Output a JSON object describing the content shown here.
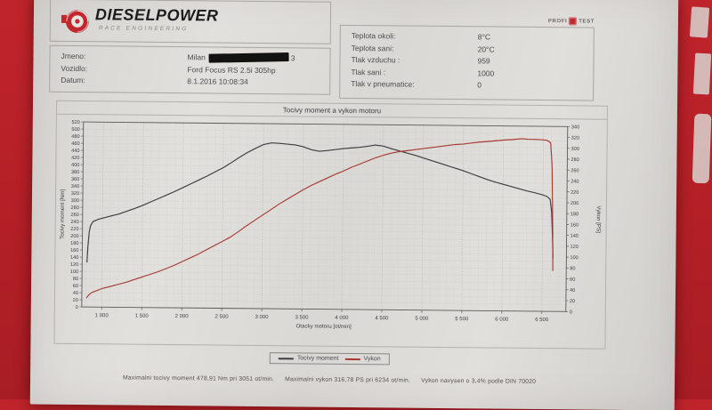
{
  "page": {
    "background_red": "#b7222a",
    "paper_color": "#dedcd8"
  },
  "header": {
    "brand": "DIESELPOWER",
    "subtitle": "RACE ENGINEERING",
    "accent_color": "#c1272d",
    "badge_left": "PROFI",
    "badge_right": "TEST"
  },
  "vehicle": {
    "jmeno_label": "Jmeno:",
    "jmeno_first": "Milan",
    "jmeno_last": "3",
    "vozidlo_label": "Vozidlo:",
    "vozidlo_value": "Ford Focus RS 2.5i 305hp",
    "datum_label": "Datum:",
    "datum_value": "8.1.2016 10:08:34"
  },
  "conditions": {
    "rows": [
      {
        "label": "Teplota okoli:",
        "value": "8°C"
      },
      {
        "label": "Teplota sani:",
        "value": "20°C"
      },
      {
        "label": "Tlak vzduchu :",
        "value": "959"
      },
      {
        "label": "Tlak sani :",
        "value": "1000"
      },
      {
        "label": "Tlak v pneumatice:",
        "value": "0"
      }
    ]
  },
  "chart_data": {
    "type": "line",
    "title": "Tocivy moment a vykon motoru",
    "xlabel": "Otacky motoru [ot/min]",
    "ylabel_left": "Tocivy moment [Nm]",
    "ylabel_right": "Vykon [PS]",
    "x_range": [
      750,
      6800
    ],
    "x_ticks": [
      1000,
      1500,
      2000,
      2500,
      3000,
      3500,
      4000,
      4500,
      5000,
      5500,
      6000,
      6500
    ],
    "y_left_range": [
      0,
      520
    ],
    "y_left_step": 20,
    "y_right_range": [
      0,
      340
    ],
    "y_right_step": 20,
    "grid": true,
    "legend_position": "bottom",
    "series": [
      {
        "name": "Tocivy moment",
        "axis": "left",
        "units": "Nm",
        "color": "#3d3d3d",
        "points": [
          [
            810,
            126
          ],
          [
            820,
            170
          ],
          [
            835,
            210
          ],
          [
            850,
            228
          ],
          [
            880,
            240
          ],
          [
            950,
            247
          ],
          [
            1000,
            250
          ],
          [
            1100,
            256
          ],
          [
            1200,
            262
          ],
          [
            1300,
            270
          ],
          [
            1400,
            278
          ],
          [
            1500,
            287
          ],
          [
            1600,
            297
          ],
          [
            1700,
            307
          ],
          [
            1800,
            317
          ],
          [
            1900,
            327
          ],
          [
            2000,
            338
          ],
          [
            2100,
            349
          ],
          [
            2200,
            360
          ],
          [
            2300,
            371
          ],
          [
            2400,
            383
          ],
          [
            2500,
            395
          ],
          [
            2600,
            409
          ],
          [
            2700,
            424
          ],
          [
            2800,
            438
          ],
          [
            2900,
            450
          ],
          [
            3000,
            461
          ],
          [
            3100,
            466
          ],
          [
            3200,
            465
          ],
          [
            3300,
            463
          ],
          [
            3400,
            461
          ],
          [
            3500,
            456
          ],
          [
            3600,
            448
          ],
          [
            3700,
            444
          ],
          [
            3800,
            446
          ],
          [
            3900,
            449
          ],
          [
            4000,
            452
          ],
          [
            4100,
            454
          ],
          [
            4200,
            456
          ],
          [
            4300,
            459
          ],
          [
            4400,
            463
          ],
          [
            4500,
            460
          ],
          [
            4600,
            453
          ],
          [
            4700,
            447
          ],
          [
            4800,
            441
          ],
          [
            4900,
            435
          ],
          [
            5000,
            428
          ],
          [
            5100,
            421
          ],
          [
            5200,
            414
          ],
          [
            5300,
            407
          ],
          [
            5400,
            400
          ],
          [
            5500,
            393
          ],
          [
            5600,
            385
          ],
          [
            5700,
            377
          ],
          [
            5800,
            369
          ],
          [
            5900,
            362
          ],
          [
            6000,
            356
          ],
          [
            6100,
            350
          ],
          [
            6200,
            344
          ],
          [
            6300,
            338
          ],
          [
            6400,
            333
          ],
          [
            6500,
            327
          ],
          [
            6550,
            323
          ],
          [
            6590,
            315
          ],
          [
            6610,
            280
          ],
          [
            6620,
            230
          ],
          [
            6628,
            185
          ],
          [
            6632,
            150
          ]
        ]
      },
      {
        "name": "Vykon",
        "axis": "right",
        "units": "PS",
        "color": "#a63a33",
        "points": [
          [
            810,
            17
          ],
          [
            830,
            21
          ],
          [
            850,
            24
          ],
          [
            880,
            27
          ],
          [
            950,
            31
          ],
          [
            1000,
            34
          ],
          [
            1100,
            38
          ],
          [
            1200,
            42
          ],
          [
            1300,
            46
          ],
          [
            1400,
            51
          ],
          [
            1500,
            56
          ],
          [
            1600,
            61
          ],
          [
            1700,
            66
          ],
          [
            1800,
            72
          ],
          [
            1900,
            78
          ],
          [
            2000,
            85
          ],
          [
            2100,
            92
          ],
          [
            2200,
            99
          ],
          [
            2300,
            107
          ],
          [
            2400,
            115
          ],
          [
            2500,
            123
          ],
          [
            2600,
            131
          ],
          [
            2700,
            141
          ],
          [
            2800,
            152
          ],
          [
            2900,
            162
          ],
          [
            3000,
            172
          ],
          [
            3100,
            182
          ],
          [
            3200,
            192
          ],
          [
            3300,
            201
          ],
          [
            3400,
            210
          ],
          [
            3500,
            219
          ],
          [
            3600,
            227
          ],
          [
            3700,
            234
          ],
          [
            3800,
            241
          ],
          [
            3900,
            248
          ],
          [
            4000,
            254
          ],
          [
            4100,
            261
          ],
          [
            4200,
            267
          ],
          [
            4300,
            273
          ],
          [
            4400,
            279
          ],
          [
            4500,
            284
          ],
          [
            4600,
            288
          ],
          [
            4700,
            291
          ],
          [
            4800,
            293
          ],
          [
            4900,
            295
          ],
          [
            5000,
            297
          ],
          [
            5100,
            299
          ],
          [
            5200,
            301
          ],
          [
            5300,
            303
          ],
          [
            5400,
            305
          ],
          [
            5500,
            306
          ],
          [
            5600,
            308
          ],
          [
            5700,
            310
          ],
          [
            5800,
            311
          ],
          [
            6000,
            314
          ],
          [
            6100,
            315
          ],
          [
            6234,
            317
          ],
          [
            6300,
            316
          ],
          [
            6400,
            316
          ],
          [
            6500,
            315
          ],
          [
            6550,
            314
          ],
          [
            6590,
            310
          ],
          [
            6610,
            270
          ],
          [
            6620,
            200
          ],
          [
            6628,
            130
          ],
          [
            6632,
            75
          ]
        ]
      }
    ]
  },
  "summary": {
    "torque": "Maximalni tocivy moment 478,91 Nm pri 3051 ot/min.",
    "power": "Maximalni vykon 316,78 PS pri 6234 ot/min.",
    "correction": "Vykon navysen o 3,4% podle DIN 70020"
  },
  "stats": {
    "max_torque_nm": "478,91",
    "max_torque_rpm": 3051,
    "max_power_ps": "316,78",
    "max_power_rpm": 6234,
    "correction_percent": "3,4%",
    "standard": "DIN 70020"
  }
}
